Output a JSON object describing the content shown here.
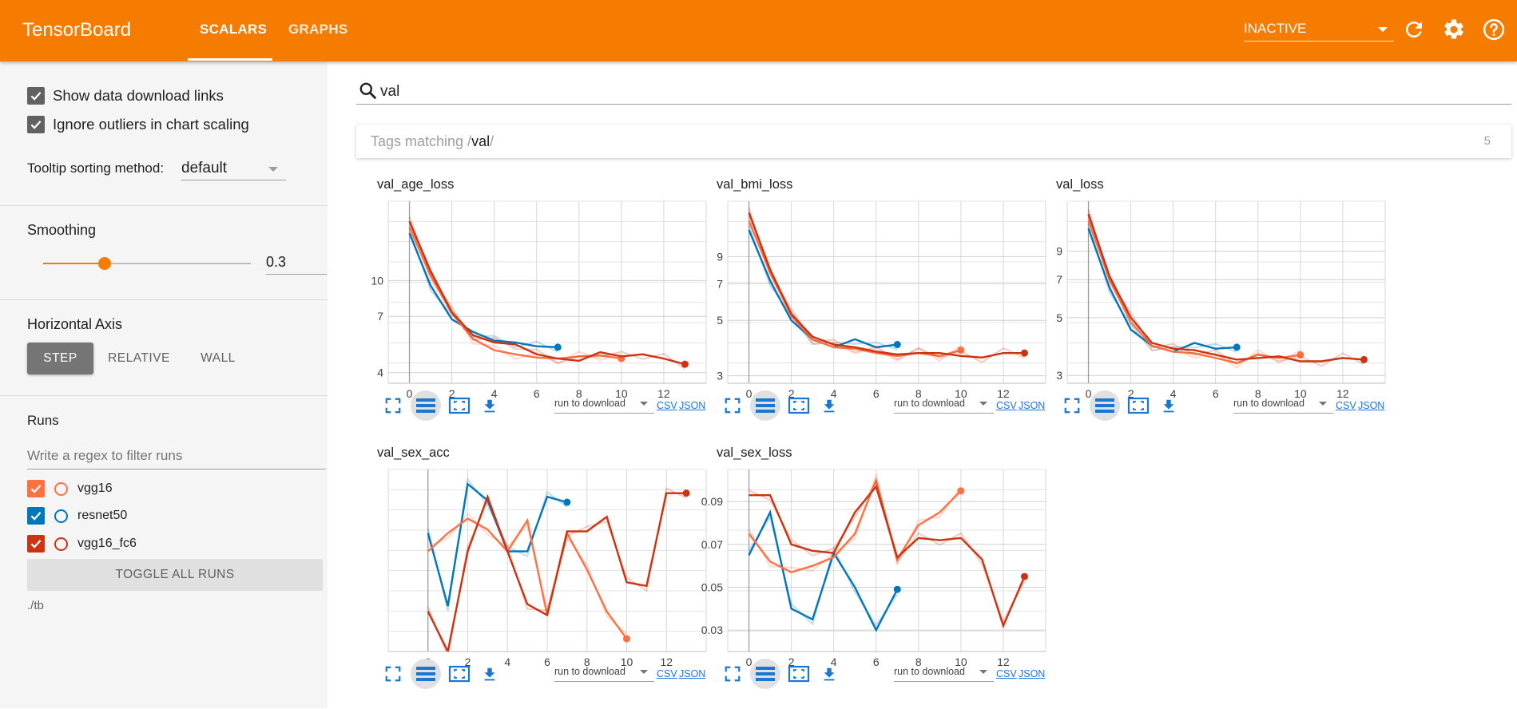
{
  "header": {
    "brand": "TensorBoard",
    "tabs": [
      {
        "label": "SCALARS",
        "active": true
      },
      {
        "label": "GRAPHS",
        "active": false
      }
    ],
    "run_status": "INACTIVE",
    "icons": [
      "refresh-icon",
      "settings-gear-icon",
      "help-icon"
    ],
    "accent": "#f57c00"
  },
  "sidebar": {
    "show_download_links": {
      "label": "Show data download links",
      "checked": true
    },
    "ignore_outliers": {
      "label": "Ignore outliers in chart scaling",
      "checked": true
    },
    "tooltip_label": "Tooltip sorting method:",
    "tooltip_value": "default",
    "smoothing_label": "Smoothing",
    "smoothing_value": "0.3",
    "smoothing_fraction": 0.3,
    "axis_label": "Horizontal Axis",
    "axis_options": [
      "STEP",
      "RELATIVE",
      "WALL"
    ],
    "axis_selected": "STEP",
    "runs_label": "Runs",
    "runs_filter_placeholder": "Write a regex to filter runs",
    "runs": [
      {
        "name": "vgg16",
        "color": "#ff7043",
        "checked": true
      },
      {
        "name": "resnet50",
        "color": "#0077bb",
        "checked": true
      },
      {
        "name": "vgg16_fc6",
        "color": "#cc3311",
        "checked": true
      }
    ],
    "toggle_all": "TOGGLE ALL RUNS",
    "logdir": "./tb"
  },
  "main": {
    "search_value": "val",
    "tags_prefix": "Tags matching /",
    "tags_regex": "val",
    "tags_suffix": "/",
    "tags_count": "5",
    "download_placeholder": "run to download",
    "csv_label": "CSV",
    "json_label": "JSON"
  },
  "chart_data": [
    {
      "type": "line",
      "title": "val_age_loss",
      "log_scale": true,
      "xlim": [
        -1,
        14
      ],
      "ylim": [
        3.6,
        22
      ],
      "xticks": [
        0,
        2,
        4,
        6,
        8,
        10,
        12
      ],
      "yticks": [
        4,
        7,
        10
      ],
      "series": [
        {
          "name": "resnet50",
          "x": [
            0,
            1,
            2,
            3,
            4,
            5,
            6,
            7
          ],
          "y": [
            16,
            9.5,
            6.8,
            6.0,
            5.5,
            5.4,
            5.2,
            5.15
          ]
        },
        {
          "name": "vgg16",
          "x": [
            0,
            1,
            2,
            3,
            4,
            5,
            6,
            7,
            8,
            9,
            10
          ],
          "y": [
            17,
            10.5,
            7.2,
            5.6,
            5.0,
            4.8,
            4.65,
            4.6,
            4.7,
            4.75,
            4.6
          ]
        },
        {
          "name": "vgg16_fc6",
          "x": [
            0,
            1,
            2,
            3,
            4,
            5,
            6,
            7,
            8,
            9,
            10,
            11,
            12,
            13
          ],
          "y": [
            18,
            11,
            7.3,
            5.8,
            5.4,
            5.3,
            4.8,
            4.6,
            4.5,
            4.9,
            4.7,
            4.8,
            4.6,
            4.35
          ]
        }
      ]
    },
    {
      "type": "line",
      "title": "val_bmi_loss",
      "log_scale": true,
      "xlim": [
        -1,
        14
      ],
      "ylim": [
        2.8,
        15
      ],
      "xticks": [
        0,
        2,
        4,
        6,
        8,
        10,
        12
      ],
      "yticks": [
        3,
        5,
        7,
        9
      ],
      "series": [
        {
          "name": "resnet50",
          "x": [
            0,
            1,
            2,
            3,
            4,
            5,
            6,
            7
          ],
          "y": [
            11.5,
            7.2,
            5.0,
            4.2,
            3.9,
            4.2,
            3.9,
            4.0
          ]
        },
        {
          "name": "vgg16",
          "x": [
            0,
            1,
            2,
            3,
            4,
            5,
            6,
            7,
            8,
            9,
            10
          ],
          "y": [
            12.5,
            7.8,
            5.2,
            4.2,
            3.9,
            3.85,
            3.7,
            3.6,
            3.7,
            3.6,
            3.8
          ]
        },
        {
          "name": "vgg16_fc6",
          "x": [
            0,
            1,
            2,
            3,
            4,
            5,
            6,
            7,
            8,
            9,
            10,
            11,
            12,
            13
          ],
          "y": [
            13.5,
            8.0,
            5.3,
            4.3,
            4.0,
            3.9,
            3.75,
            3.65,
            3.7,
            3.7,
            3.6,
            3.55,
            3.7,
            3.7
          ]
        }
      ]
    },
    {
      "type": "line",
      "title": "val_loss",
      "log_scale": true,
      "xlim": [
        -1,
        14
      ],
      "ylim": [
        2.8,
        14
      ],
      "xticks": [
        0,
        2,
        4,
        6,
        8,
        10,
        12
      ],
      "yticks": [
        3,
        5,
        7,
        9
      ],
      "series": [
        {
          "name": "resnet50",
          "x": [
            0,
            1,
            2,
            3,
            4,
            5,
            6,
            7
          ],
          "y": [
            11,
            6.5,
            4.5,
            3.9,
            3.7,
            4.0,
            3.8,
            3.85
          ]
        },
        {
          "name": "vgg16",
          "x": [
            0,
            1,
            2,
            3,
            4,
            5,
            6,
            7,
            8,
            9,
            10
          ],
          "y": [
            11.8,
            7.0,
            4.8,
            3.9,
            3.7,
            3.65,
            3.5,
            3.35,
            3.6,
            3.5,
            3.6
          ]
        },
        {
          "name": "vgg16_fc6",
          "x": [
            0,
            1,
            2,
            3,
            4,
            5,
            6,
            7,
            8,
            9,
            10,
            11,
            12,
            13
          ],
          "y": [
            12.5,
            7.2,
            5.0,
            4.0,
            3.8,
            3.75,
            3.6,
            3.45,
            3.5,
            3.55,
            3.4,
            3.4,
            3.5,
            3.45
          ]
        }
      ]
    },
    {
      "type": "line",
      "title": "val_sex_acc",
      "log_scale": false,
      "xlim": [
        -2,
        14
      ],
      "ylim": [
        0,
        1
      ],
      "xticks": [
        0,
        2,
        4,
        6,
        8,
        10,
        12
      ],
      "yticks": [],
      "series": [
        {
          "name": "resnet50",
          "x": [
            0,
            1,
            2,
            3,
            4,
            5,
            6,
            7
          ],
          "y": [
            0.65,
            0.25,
            0.92,
            0.83,
            0.55,
            0.55,
            0.85,
            0.82
          ]
        },
        {
          "name": "vgg16",
          "x": [
            0,
            1,
            2,
            3,
            4,
            5,
            6,
            7,
            8,
            9,
            10
          ],
          "y": [
            0.55,
            0.65,
            0.73,
            0.67,
            0.55,
            0.72,
            0.2,
            0.65,
            0.45,
            0.22,
            0.07
          ]
        },
        {
          "name": "vgg16_fc6",
          "x": [
            0,
            1,
            2,
            3,
            4,
            5,
            6,
            7,
            8,
            9,
            10,
            11,
            12,
            13
          ],
          "y": [
            0.22,
            0.0,
            0.55,
            0.85,
            0.55,
            0.26,
            0.2,
            0.66,
            0.66,
            0.74,
            0.38,
            0.36,
            0.87,
            0.87
          ]
        }
      ]
    },
    {
      "type": "line",
      "title": "val_sex_loss",
      "log_scale": false,
      "xlim": [
        -1,
        14
      ],
      "ylim": [
        0.02,
        0.105
      ],
      "xticks": [
        0,
        2,
        4,
        6,
        8,
        10,
        12
      ],
      "yticks": [
        0.03,
        0.05,
        0.07,
        0.09
      ],
      "series": [
        {
          "name": "resnet50",
          "x": [
            0,
            1,
            2,
            3,
            4,
            5,
            6,
            7
          ],
          "y": [
            0.065,
            0.085,
            0.04,
            0.035,
            0.066,
            0.05,
            0.03,
            0.049
          ]
        },
        {
          "name": "vgg16",
          "x": [
            0,
            1,
            2,
            3,
            4,
            5,
            6,
            7,
            8,
            9,
            10
          ],
          "y": [
            0.075,
            0.062,
            0.057,
            0.06,
            0.064,
            0.075,
            0.1,
            0.063,
            0.079,
            0.085,
            0.095
          ]
        },
        {
          "name": "vgg16_fc6",
          "x": [
            0,
            1,
            2,
            3,
            4,
            5,
            6,
            7,
            8,
            9,
            10,
            11,
            12,
            13
          ],
          "y": [
            0.093,
            0.093,
            0.07,
            0.067,
            0.066,
            0.085,
            0.097,
            0.064,
            0.073,
            0.072,
            0.073,
            0.063,
            0.032,
            0.055
          ]
        }
      ]
    }
  ]
}
